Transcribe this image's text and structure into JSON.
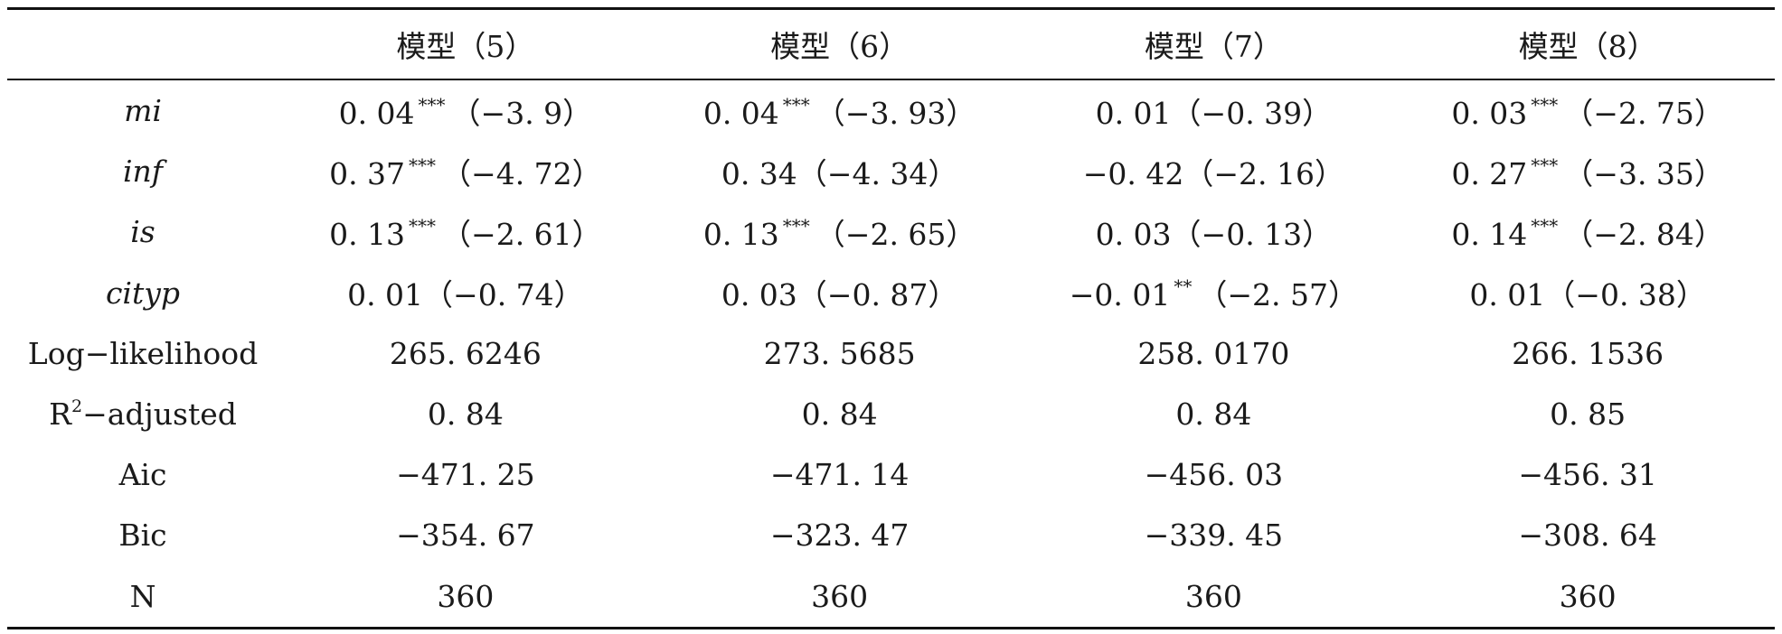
{
  "table": {
    "headers": [
      "",
      "模型（5）",
      "模型（6）",
      "模型（7）",
      "模型（8）"
    ],
    "rows": [
      {
        "label": "mi",
        "italic": true,
        "cells": [
          {
            "value": "0. 04",
            "stars": "***",
            "t": "（−3. 9）"
          },
          {
            "value": "0. 04",
            "stars": "***",
            "t": "（−3. 93）"
          },
          {
            "value": "0. 01",
            "stars": "",
            "t": "（−0. 39）"
          },
          {
            "value": "0. 03",
            "stars": "***",
            "t": "（−2. 75）"
          }
        ]
      },
      {
        "label": "inf",
        "italic": true,
        "cells": [
          {
            "value": "0. 37",
            "stars": "***",
            "t": "（−4. 72）"
          },
          {
            "value": "0. 34",
            "stars": "",
            "t": "（−4. 34）"
          },
          {
            "value": "−0. 42",
            "stars": "",
            "t": "（−2. 16）"
          },
          {
            "value": "0. 27",
            "stars": "***",
            "t": "（−3. 35）"
          }
        ]
      },
      {
        "label": "is",
        "italic": true,
        "cells": [
          {
            "value": "0. 13",
            "stars": "***",
            "t": "（−2. 61）"
          },
          {
            "value": "0. 13",
            "stars": "***",
            "t": "（−2. 65）"
          },
          {
            "value": "0. 03",
            "stars": "",
            "t": "（−0. 13）"
          },
          {
            "value": "0. 14",
            "stars": "***",
            "t": "（−2. 84）"
          }
        ]
      },
      {
        "label": "cityp",
        "italic": true,
        "cells": [
          {
            "value": "0. 01",
            "stars": "",
            "t": "（−0. 74）"
          },
          {
            "value": "0. 03",
            "stars": "",
            "t": "（−0. 87）"
          },
          {
            "value": "−0. 01",
            "stars": "**",
            "t": "（−2. 57）"
          },
          {
            "value": "0. 01",
            "stars": "",
            "t": "（−0. 38）"
          }
        ]
      },
      {
        "label": "Log−likelihood",
        "italic": false,
        "cells": [
          {
            "value": "265. 6246",
            "stars": "",
            "t": ""
          },
          {
            "value": "273. 5685",
            "stars": "",
            "t": ""
          },
          {
            "value": "258. 0170",
            "stars": "",
            "t": ""
          },
          {
            "value": "266. 1536",
            "stars": "",
            "t": ""
          }
        ]
      },
      {
        "label": "R",
        "label_sup": "2",
        "label_suffix": "−adjusted",
        "italic": false,
        "cells": [
          {
            "value": "0. 84",
            "stars": "",
            "t": ""
          },
          {
            "value": "0. 84",
            "stars": "",
            "t": ""
          },
          {
            "value": "0. 84",
            "stars": "",
            "t": ""
          },
          {
            "value": "0. 85",
            "stars": "",
            "t": ""
          }
        ]
      },
      {
        "label": "Aic",
        "italic": false,
        "cells": [
          {
            "value": "−471. 25",
            "stars": "",
            "t": ""
          },
          {
            "value": "−471. 14",
            "stars": "",
            "t": ""
          },
          {
            "value": "−456. 03",
            "stars": "",
            "t": ""
          },
          {
            "value": "−456. 31",
            "stars": "",
            "t": ""
          }
        ]
      },
      {
        "label": "Bic",
        "italic": false,
        "cells": [
          {
            "value": "−354. 67",
            "stars": "",
            "t": ""
          },
          {
            "value": "−323. 47",
            "stars": "",
            "t": ""
          },
          {
            "value": "−339. 45",
            "stars": "",
            "t": ""
          },
          {
            "value": "−308. 64",
            "stars": "",
            "t": ""
          }
        ]
      },
      {
        "label": "N",
        "italic": false,
        "cells": [
          {
            "value": "360",
            "stars": "",
            "t": ""
          },
          {
            "value": "360",
            "stars": "",
            "t": ""
          },
          {
            "value": "360",
            "stars": "",
            "t": ""
          },
          {
            "value": "360",
            "stars": "",
            "t": ""
          }
        ]
      }
    ]
  }
}
